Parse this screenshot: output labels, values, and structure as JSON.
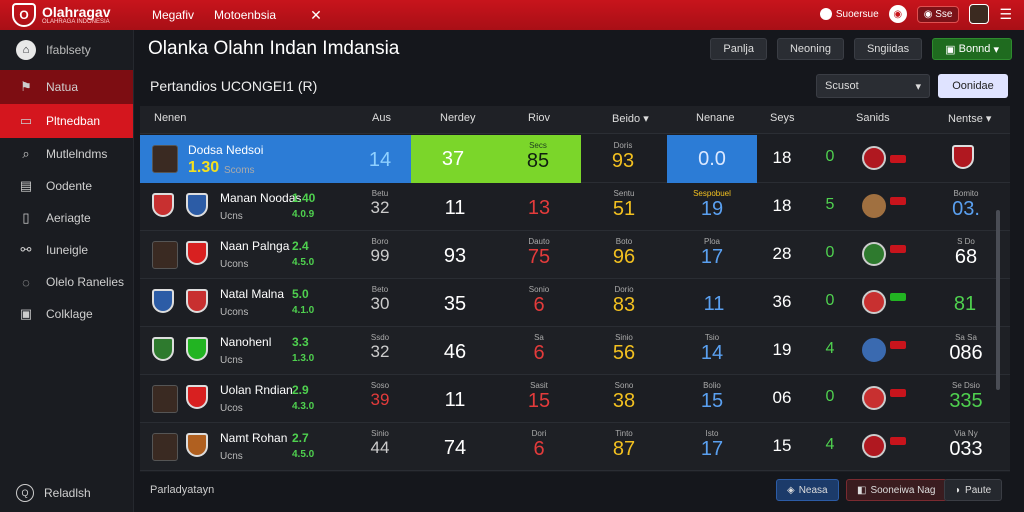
{
  "app": {
    "logo_title": "Olahragav",
    "logo_sub": "OLAHRAGA INDONESIA",
    "nav": [
      "Megafiv",
      "Motoenbsia"
    ],
    "status_text": "Suoersue",
    "pill_text": "Sse"
  },
  "sidebar": {
    "top_label": "Ifablsety",
    "items": [
      {
        "label": "Natua",
        "icon": "flag-icon"
      },
      {
        "label": "Pltnedban",
        "icon": "card-icon"
      },
      {
        "label": "Mutlelndms",
        "icon": "search-icon"
      },
      {
        "label": "Oodente",
        "icon": "document-icon"
      },
      {
        "label": "Aeriagte",
        "icon": "tablet-icon"
      },
      {
        "label": "Iuneigle",
        "icon": "link-icon"
      },
      {
        "label": "Olelo Ranelies",
        "icon": "chat-icon"
      },
      {
        "label": "Colklage",
        "icon": "box-icon"
      }
    ],
    "bottom_label": "Reladlsh"
  },
  "main": {
    "title": "Olanka Olahn Indan Imdansia",
    "buttons": [
      "Panlja",
      "Neoning",
      "Sngiidas"
    ],
    "green_button": "Bonnd",
    "subtitle": "Pertandios UCONGEI1 (R)",
    "select_value": "Scusot",
    "primary_button": "Oonidae"
  },
  "table": {
    "headers": [
      "Nenen",
      "Aus",
      "Nerdey",
      "Riov",
      "Beido",
      "Nenane",
      "Seys",
      "Sanids",
      "Nentse"
    ],
    "rows": [
      {
        "name": "Dodsa Nedsoi",
        "rating": "1.30",
        "club": "Scoms",
        "c1": "14",
        "c2": "37",
        "c3_lbl": "Secs",
        "c3": "85",
        "c4_lbl": "Doris",
        "c4": "93",
        "c5": "0.0",
        "c6": "18",
        "c7": "0",
        "c9_lbl": "",
        "c9": ""
      },
      {
        "name": "Manan Noodas",
        "rating": "1.40",
        "club": "Ucns",
        "rating2": "4.0.9",
        "c1_lbl": "Betu",
        "c1": "32",
        "c2": "11",
        "c3_lbl": "",
        "c3": "13",
        "c4_lbl": "Sentu",
        "c4": "51",
        "c5_lbl": "Sespobuel",
        "c5": "19",
        "c6": "18",
        "c7": "5",
        "c9_lbl": "Bomito",
        "c9": "03."
      },
      {
        "name": "Naan Palnga",
        "rating": "2.4",
        "club": "Ucons",
        "rating2": "4.5.0",
        "c1_lbl": "Boro",
        "c1": "99",
        "c2": "93",
        "c3_lbl": "Dauto",
        "c3": "75",
        "c4_lbl": "Boto",
        "c4": "96",
        "c5_lbl": "Ploa",
        "c5": "17",
        "c6": "28",
        "c7": "0",
        "c9_lbl": "S Do",
        "c9": "68"
      },
      {
        "name": "Natal Malna",
        "rating": "5.0",
        "club": "Ucons",
        "rating2": "4.1.0",
        "c1_lbl": "Beto",
        "c1": "30",
        "c2": "35",
        "c3_lbl": "Sonio",
        "c3": "6",
        "c4_lbl": "Dorio",
        "c4": "83",
        "c5_lbl": "",
        "c5": "11",
        "c6": "36",
        "c7": "0",
        "c9_lbl": "",
        "c9": "81"
      },
      {
        "name": "Nanohenl",
        "rating": "3.3",
        "club": "Ucns",
        "rating2": "1.3.0",
        "c1_lbl": "Ssdo",
        "c1": "32",
        "c2": "46",
        "c3_lbl": "Sa",
        "c3": "6",
        "c4_lbl": "Sinio",
        "c4": "56",
        "c5_lbl": "Tsio",
        "c5": "14",
        "c6": "19",
        "c7": "4",
        "c9_lbl": "Sa Sa",
        "c9": "086"
      },
      {
        "name": "Uolan Rndian",
        "rating": "2.9",
        "club": "Ucos",
        "rating2": "4.3.0",
        "c1_lbl": "Soso",
        "c1": "39",
        "c2": "11",
        "c3_lbl": "Sasit",
        "c3": "15",
        "c4_lbl": "Sono",
        "c4": "38",
        "c5_lbl": "Bolio",
        "c5": "15",
        "c6": "06",
        "c7": "0",
        "c9_lbl": "Se Dsio",
        "c9": "335"
      },
      {
        "name": "Namt Rohan",
        "rating": "2.7",
        "club": "Ucns",
        "rating2": "4.5.0",
        "c1_lbl": "Sinio",
        "c1": "44",
        "c2": "74",
        "c3_lbl": "Dori",
        "c3": "6",
        "c4_lbl": "Tinto",
        "c4": "87",
        "c5_lbl": "Isto",
        "c5": "17",
        "c6": "15",
        "c7": "4",
        "c9_lbl": "Via Ny",
        "c9": "033"
      }
    ]
  },
  "footer": {
    "left": "Parladyatayn",
    "btn1": "Neasa",
    "btn2": "Sooneiwa Nag",
    "btn3": "Paute"
  },
  "colors": {
    "brand_red": "#c8141c",
    "highlight_blue": "#2c7cd6",
    "rating_green": "#4fd14f",
    "stat_red": "#e33b3b",
    "stat_yellow": "#f2c020",
    "stat_blue": "#5aa0f0"
  }
}
